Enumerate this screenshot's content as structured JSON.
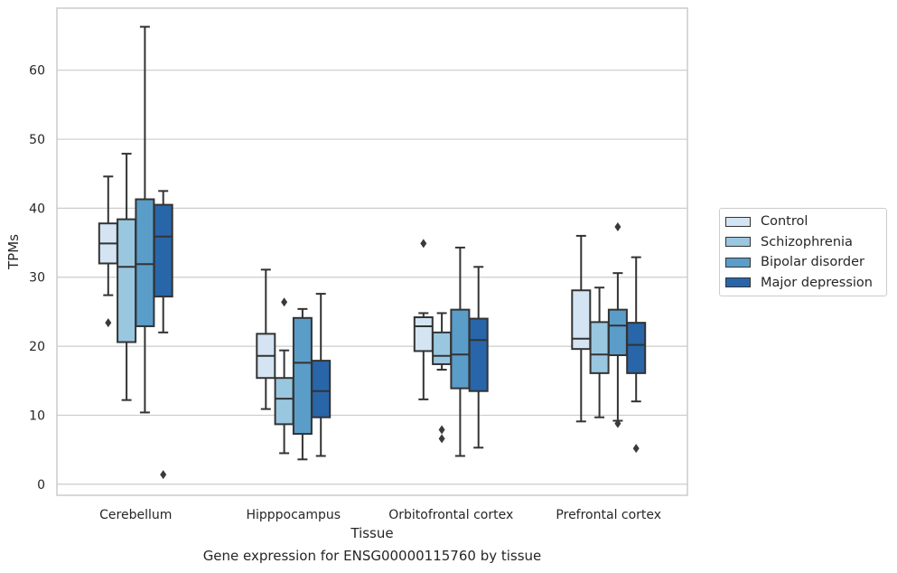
{
  "caption": "Gene expression for ENSG00000115760 by tissue",
  "chart_data": {
    "type": "box",
    "title": "",
    "xlabel": "Tissue",
    "ylabel": "TPMs",
    "ylim": [
      -1.6,
      69
    ],
    "yticks": [
      0,
      10,
      20,
      30,
      40,
      50,
      60
    ],
    "grid": "horizontal",
    "legend_position": "right",
    "categories": [
      "Cerebellum",
      "Hipppocampus",
      "Orbitofrontal cortex",
      "Prefrontal cortex"
    ],
    "series": [
      {
        "name": "Control",
        "color": "#d4e4f2",
        "boxes": [
          {
            "whisker_low": 27.4,
            "q1": 32.0,
            "median": 34.9,
            "q3": 37.8,
            "whisker_high": 44.6,
            "outliers": [
              23.4
            ]
          },
          {
            "whisker_low": 10.9,
            "q1": 15.4,
            "median": 18.6,
            "q3": 21.8,
            "whisker_high": 31.1,
            "outliers": []
          },
          {
            "whisker_low": 12.3,
            "q1": 19.3,
            "median": 22.9,
            "q3": 24.2,
            "whisker_high": 24.8,
            "outliers": [
              34.9
            ]
          },
          {
            "whisker_low": 9.1,
            "q1": 19.6,
            "median": 21.1,
            "q3": 28.1,
            "whisker_high": 36.0,
            "outliers": []
          }
        ]
      },
      {
        "name": "Schizophrenia",
        "color": "#9ac7e0",
        "boxes": [
          {
            "whisker_low": 12.2,
            "q1": 20.6,
            "median": 31.5,
            "q3": 38.4,
            "whisker_high": 47.9,
            "outliers": []
          },
          {
            "whisker_low": 4.5,
            "q1": 8.7,
            "median": 12.4,
            "q3": 15.4,
            "whisker_high": 19.4,
            "outliers": [
              26.4
            ]
          },
          {
            "whisker_low": 16.6,
            "q1": 17.4,
            "median": 18.6,
            "q3": 22.0,
            "whisker_high": 24.8,
            "outliers": [
              7.9,
              6.6
            ]
          },
          {
            "whisker_low": 9.7,
            "q1": 16.1,
            "median": 18.8,
            "q3": 23.5,
            "whisker_high": 28.5,
            "outliers": []
          }
        ]
      },
      {
        "name": "Bipolar disorder",
        "color": "#5b9dc9",
        "boxes": [
          {
            "whisker_low": 10.4,
            "q1": 22.9,
            "median": 31.9,
            "q3": 41.3,
            "whisker_high": 66.3,
            "outliers": []
          },
          {
            "whisker_low": 3.6,
            "q1": 7.3,
            "median": 17.6,
            "q3": 24.1,
            "whisker_high": 25.4,
            "outliers": []
          },
          {
            "whisker_low": 4.1,
            "q1": 13.9,
            "median": 18.8,
            "q3": 25.3,
            "whisker_high": 34.3,
            "outliers": []
          },
          {
            "whisker_low": 9.2,
            "q1": 18.7,
            "median": 23.0,
            "q3": 25.3,
            "whisker_high": 30.6,
            "outliers": [
              37.3,
              8.8
            ]
          }
        ]
      },
      {
        "name": "Major depression",
        "color": "#2866a9",
        "boxes": [
          {
            "whisker_low": 22.0,
            "q1": 27.2,
            "median": 35.9,
            "q3": 40.5,
            "whisker_high": 42.5,
            "outliers": [
              1.4
            ]
          },
          {
            "whisker_low": 4.1,
            "q1": 9.7,
            "median": 13.5,
            "q3": 17.9,
            "whisker_high": 27.6,
            "outliers": []
          },
          {
            "whisker_low": 5.3,
            "q1": 13.5,
            "median": 20.9,
            "q3": 24.0,
            "whisker_high": 31.5,
            "outliers": []
          },
          {
            "whisker_low": 12.0,
            "q1": 16.1,
            "median": 20.2,
            "q3": 23.4,
            "whisker_high": 32.9,
            "outliers": [
              5.2
            ]
          }
        ]
      }
    ]
  }
}
